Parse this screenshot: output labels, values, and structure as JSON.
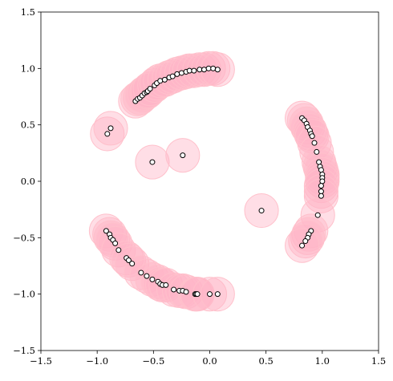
{
  "chart_data": {
    "type": "scatter",
    "title": "",
    "xlabel": "",
    "ylabel": "",
    "xlim": [
      -1.5,
      1.5
    ],
    "ylim": [
      -1.5,
      1.5
    ],
    "x_ticks": [
      "−1.5",
      "−1.0",
      "−0.5",
      "0.0",
      "0.5",
      "1.0",
      "1.5"
    ],
    "y_ticks": [
      "−1.5",
      "−1.0",
      "−0.5",
      "0.0",
      "0.5",
      "1.0",
      "1.5"
    ],
    "x_tick_values": [
      -1.5,
      -1.0,
      -0.5,
      0.0,
      0.5,
      1.0,
      1.5
    ],
    "y_tick_values": [
      -1.5,
      -1.0,
      -0.5,
      0.0,
      0.5,
      1.0,
      1.5
    ],
    "grid": false,
    "legend": "none",
    "circle_radius": 0.15,
    "colors": {
      "circle_fill": "#ffb6c8",
      "circle_edge": "#ffc0cb",
      "marker_fill": "#ffffff",
      "marker_edge": "#000000",
      "axis": "#000000"
    },
    "points": [
      [
        -0.66,
        0.71
      ],
      [
        -0.64,
        0.73
      ],
      [
        -0.62,
        0.74
      ],
      [
        -0.6,
        0.76
      ],
      [
        -0.58,
        0.78
      ],
      [
        -0.56,
        0.79
      ],
      [
        -0.55,
        0.8
      ],
      [
        -0.53,
        0.82
      ],
      [
        -0.49,
        0.85
      ],
      [
        -0.47,
        0.87
      ],
      [
        -0.44,
        0.89
      ],
      [
        -0.4,
        0.9
      ],
      [
        -0.36,
        0.92
      ],
      [
        -0.33,
        0.93
      ],
      [
        -0.29,
        0.95
      ],
      [
        -0.25,
        0.96
      ],
      [
        -0.21,
        0.97
      ],
      [
        -0.18,
        0.98
      ],
      [
        -0.14,
        0.98
      ],
      [
        -0.09,
        0.99
      ],
      [
        -0.05,
        0.99
      ],
      [
        -0.01,
        1.0
      ],
      [
        0.03,
        1.0
      ],
      [
        0.07,
        0.99
      ],
      [
        -0.91,
        0.42
      ],
      [
        -0.88,
        0.47
      ],
      [
        -0.51,
        0.17
      ],
      [
        -0.24,
        0.23
      ],
      [
        0.82,
        0.56
      ],
      [
        0.84,
        0.54
      ],
      [
        0.86,
        0.51
      ],
      [
        0.87,
        0.48
      ],
      [
        0.89,
        0.45
      ],
      [
        0.9,
        0.42
      ],
      [
        0.91,
        0.4
      ],
      [
        0.93,
        0.34
      ],
      [
        0.95,
        0.26
      ],
      [
        0.97,
        0.17
      ],
      [
        0.98,
        0.13
      ],
      [
        0.99,
        0.1
      ],
      [
        1.0,
        0.06
      ],
      [
        1.0,
        0.03
      ],
      [
        1.0,
        0.0
      ],
      [
        0.99,
        -0.04
      ],
      [
        0.99,
        -0.09
      ],
      [
        0.99,
        -0.13
      ],
      [
        0.96,
        -0.3
      ],
      [
        0.46,
        -0.26
      ],
      [
        0.9,
        -0.44
      ],
      [
        0.88,
        -0.47
      ],
      [
        0.87,
        -0.5
      ],
      [
        0.85,
        -0.53
      ],
      [
        0.82,
        -0.57
      ],
      [
        -0.92,
        -0.44
      ],
      [
        -0.89,
        -0.47
      ],
      [
        -0.88,
        -0.5
      ],
      [
        -0.86,
        -0.52
      ],
      [
        -0.84,
        -0.55
      ],
      [
        -0.81,
        -0.61
      ],
      [
        -0.74,
        -0.68
      ],
      [
        -0.72,
        -0.7
      ],
      [
        -0.69,
        -0.73
      ],
      [
        -0.61,
        -0.81
      ],
      [
        -0.56,
        -0.84
      ],
      [
        -0.51,
        -0.87
      ],
      [
        -0.46,
        -0.89
      ],
      [
        -0.44,
        -0.91
      ],
      [
        -0.42,
        -0.92
      ],
      [
        -0.39,
        -0.92
      ],
      [
        -0.32,
        -0.96
      ],
      [
        -0.27,
        -0.97
      ],
      [
        -0.24,
        -0.97
      ],
      [
        -0.21,
        -0.98
      ],
      [
        -0.13,
        -1.0
      ],
      [
        -0.12,
        -1.0
      ],
      [
        -0.11,
        -1.0
      ],
      [
        0.0,
        -1.0
      ],
      [
        0.07,
        -1.0
      ]
    ]
  }
}
